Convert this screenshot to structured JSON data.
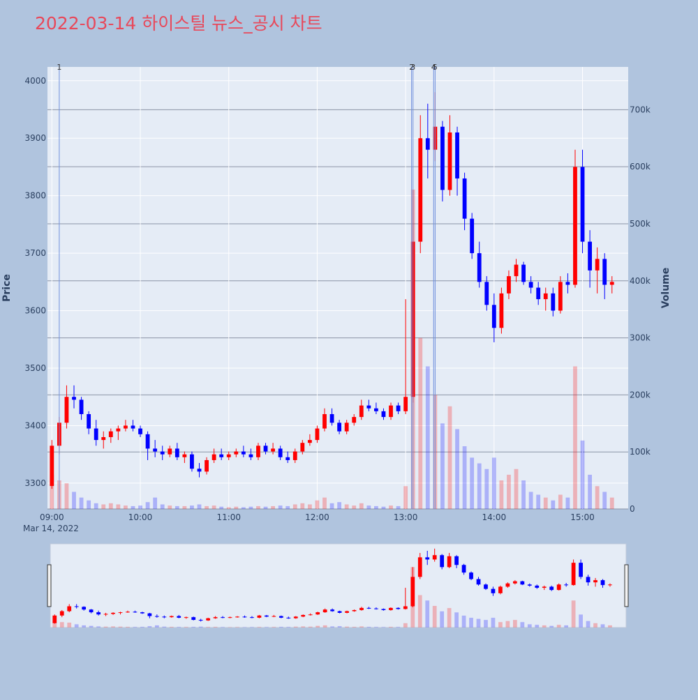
{
  "chart_data": {
    "type": "candlestick",
    "title": "2022-03-14 하이스틸 뉴스_공시 차트",
    "yaxis_title": "Price",
    "y2axis_title": "Volume",
    "x": [
      "09:00",
      "09:05",
      "09:10",
      "09:15",
      "09:20",
      "09:25",
      "09:30",
      "09:35",
      "09:40",
      "09:45",
      "09:50",
      "09:55",
      "10:00",
      "10:05",
      "10:10",
      "10:15",
      "10:20",
      "10:25",
      "10:30",
      "10:35",
      "10:40",
      "10:45",
      "10:50",
      "10:55",
      "11:00",
      "11:05",
      "11:10",
      "11:15",
      "11:20",
      "11:25",
      "11:30",
      "11:35",
      "11:40",
      "11:45",
      "11:50",
      "11:55",
      "12:00",
      "12:05",
      "12:10",
      "12:15",
      "12:20",
      "12:25",
      "12:30",
      "12:35",
      "12:40",
      "12:45",
      "12:50",
      "12:55",
      "13:00",
      "13:05",
      "13:10",
      "13:15",
      "13:20",
      "13:25",
      "13:30",
      "13:35",
      "13:40",
      "13:45",
      "13:50",
      "13:55",
      "14:00",
      "14:05",
      "14:10",
      "14:15",
      "14:20",
      "14:25",
      "14:30",
      "14:35",
      "14:40",
      "14:45",
      "14:50",
      "14:55",
      "15:00",
      "15:05",
      "15:10",
      "15:15",
      "15:20"
    ],
    "open": [
      3295,
      3365,
      3405,
      3450,
      3445,
      3420,
      3395,
      3375,
      3380,
      3390,
      3395,
      3400,
      3395,
      3385,
      3360,
      3355,
      3350,
      3360,
      3345,
      3350,
      3325,
      3320,
      3340,
      3350,
      3345,
      3350,
      3355,
      3350,
      3345,
      3365,
      3355,
      3360,
      3345,
      3340,
      3355,
      3370,
      3375,
      3395,
      3420,
      3405,
      3390,
      3405,
      3415,
      3435,
      3430,
      3425,
      3415,
      3435,
      3425,
      3450,
      3720,
      3900,
      3880,
      3920,
      3810,
      3910,
      3830,
      3760,
      3700,
      3650,
      3610,
      3570,
      3630,
      3660,
      3680,
      3650,
      3640,
      3620,
      3630,
      3600,
      3650,
      3645,
      3850,
      3720,
      3670,
      3690,
      3645
    ],
    "high": [
      3375,
      3415,
      3470,
      3470,
      3450,
      3425,
      3410,
      3390,
      3395,
      3400,
      3410,
      3410,
      3400,
      3390,
      3375,
      3365,
      3365,
      3370,
      3355,
      3355,
      3335,
      3345,
      3360,
      3360,
      3355,
      3360,
      3365,
      3360,
      3370,
      3370,
      3370,
      3365,
      3355,
      3360,
      3375,
      3385,
      3400,
      3430,
      3430,
      3410,
      3410,
      3420,
      3445,
      3445,
      3440,
      3430,
      3440,
      3440,
      3620,
      3810,
      3940,
      3960,
      3980,
      3930,
      3940,
      3920,
      3840,
      3770,
      3720,
      3660,
      3630,
      3640,
      3670,
      3690,
      3685,
      3660,
      3650,
      3640,
      3640,
      3660,
      3665,
      3880,
      3880,
      3740,
      3710,
      3700,
      3660
    ],
    "low": [
      3290,
      3350,
      3395,
      3430,
      3410,
      3385,
      3365,
      3360,
      3370,
      3375,
      3390,
      3390,
      3380,
      3340,
      3345,
      3340,
      3345,
      3340,
      3335,
      3320,
      3310,
      3315,
      3335,
      3340,
      3340,
      3345,
      3345,
      3340,
      3340,
      3350,
      3350,
      3340,
      3335,
      3335,
      3350,
      3365,
      3370,
      3390,
      3400,
      3385,
      3385,
      3400,
      3410,
      3425,
      3420,
      3410,
      3410,
      3420,
      3420,
      3440,
      3700,
      3830,
      3860,
      3790,
      3800,
      3800,
      3740,
      3690,
      3640,
      3600,
      3545,
      3560,
      3620,
      3650,
      3645,
      3630,
      3610,
      3600,
      3590,
      3595,
      3630,
      3640,
      3700,
      3640,
      3630,
      3620,
      3630
    ],
    "close": [
      3365,
      3405,
      3450,
      3445,
      3420,
      3395,
      3375,
      3380,
      3390,
      3395,
      3400,
      3395,
      3385,
      3360,
      3355,
      3350,
      3360,
      3345,
      3350,
      3325,
      3320,
      3340,
      3350,
      3345,
      3350,
      3355,
      3350,
      3345,
      3365,
      3355,
      3360,
      3345,
      3340,
      3355,
      3370,
      3375,
      3395,
      3420,
      3405,
      3390,
      3405,
      3415,
      3435,
      3430,
      3425,
      3415,
      3435,
      3425,
      3450,
      3720,
      3900,
      3880,
      3920,
      3810,
      3910,
      3830,
      3760,
      3700,
      3650,
      3610,
      3570,
      3630,
      3660,
      3680,
      3650,
      3640,
      3620,
      3630,
      3600,
      3650,
      3645,
      3850,
      3720,
      3670,
      3690,
      3645,
      3650
    ],
    "volume": [
      60000,
      50000,
      45000,
      30000,
      20000,
      15000,
      10000,
      8000,
      10000,
      8000,
      6000,
      5000,
      6000,
      12000,
      20000,
      8000,
      6000,
      5000,
      5000,
      6000,
      8000,
      5000,
      6000,
      4000,
      3000,
      4000,
      3000,
      4000,
      5000,
      4000,
      5000,
      6000,
      5000,
      8000,
      10000,
      8000,
      15000,
      20000,
      10000,
      12000,
      8000,
      6000,
      10000,
      6000,
      5000,
      4000,
      6000,
      5000,
      40000,
      560000,
      300000,
      250000,
      200000,
      150000,
      180000,
      140000,
      110000,
      90000,
      80000,
      70000,
      90000,
      50000,
      60000,
      70000,
      50000,
      30000,
      25000,
      20000,
      15000,
      25000,
      20000,
      250000,
      120000,
      60000,
      40000,
      30000,
      20000
    ],
    "xlim": [
      "08:57",
      "15:31"
    ],
    "xticks": [
      "09:00",
      "10:00",
      "11:00",
      "12:00",
      "13:00",
      "14:00",
      "15:00"
    ],
    "xtick_sublabel": "Mar 14, 2022",
    "ylim": [
      3255,
      4024
    ],
    "yticks": [
      3300,
      3400,
      3500,
      3600,
      3700,
      3800,
      3900,
      4000
    ],
    "y2lim": [
      0,
      775000
    ],
    "y2ticks": [
      0,
      {
        "value": 100000,
        "label": "100k"
      },
      {
        "value": 200000,
        "label": "200k"
      },
      {
        "value": 300000,
        "label": "300k"
      },
      {
        "value": 400000,
        "label": "400k"
      },
      {
        "value": 500000,
        "label": "500k"
      },
      {
        "value": 600000,
        "label": "600k"
      },
      {
        "value": 700000,
        "label": "700k"
      }
    ],
    "increasing_color": "#ff0000",
    "decreasing_color": "#0000ff",
    "markers": [
      {
        "label": "1",
        "x": "09:05"
      },
      {
        "label": "2",
        "x": "13:04"
      },
      {
        "label": "3",
        "x": "13:05"
      },
      {
        "label": "4",
        "x": "13:19"
      },
      {
        "label": "5",
        "x": "13:20"
      }
    ]
  }
}
